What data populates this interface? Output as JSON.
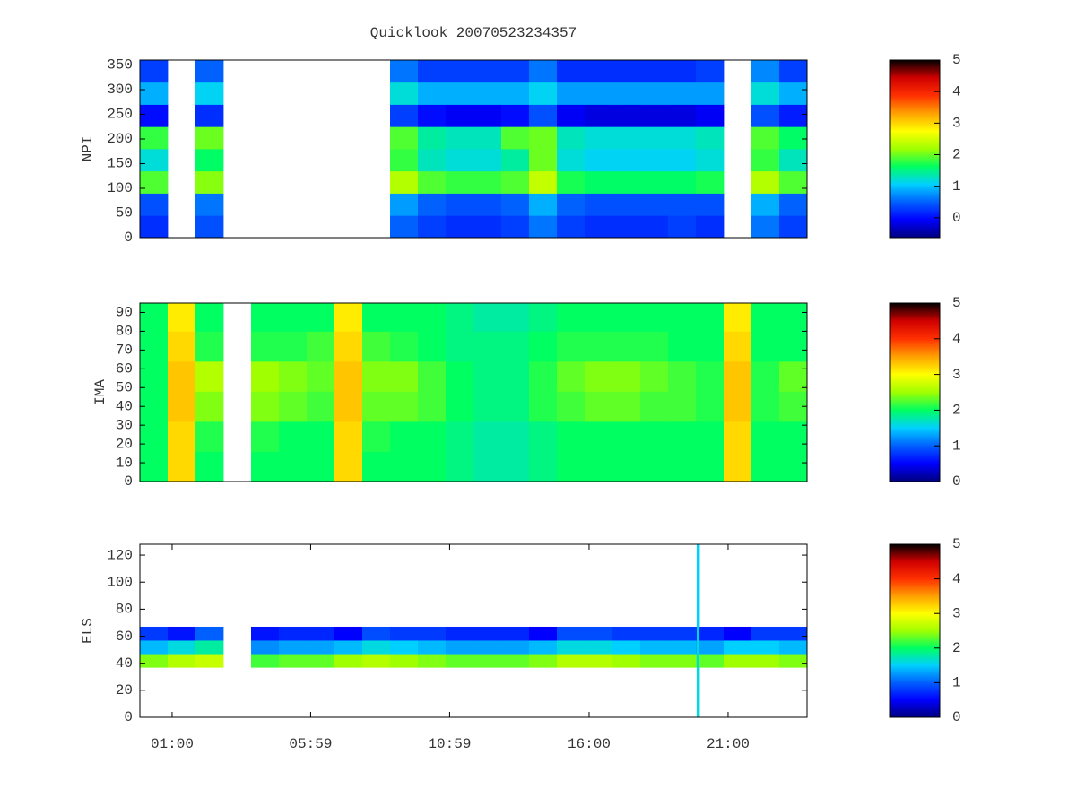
{
  "chart_data": [
    {
      "type": "heatmap",
      "title": "Quicklook 20070523234357",
      "ylabel": "NPI",
      "xlim": [
        -0.16,
        23.84
      ],
      "ylim": [
        0,
        360
      ],
      "yticks": [
        0,
        50,
        100,
        150,
        200,
        250,
        300,
        350
      ],
      "clim": [
        -0.63,
        5
      ],
      "cbticks": [
        0,
        1,
        2,
        3,
        4,
        5
      ],
      "colormap": [
        "#00007f",
        "#0000ff",
        "#0060ff",
        "#00d0ff",
        "#00ff60",
        "#a0ff00",
        "#ffff00",
        "#ffa000",
        "#ff3000",
        "#d00000",
        "#000000"
      ],
      "x_edges": [
        -0.16,
        0.84,
        1.84,
        2.84,
        3.84,
        4.84,
        5.84,
        6.84,
        7.84,
        8.84,
        9.84,
        10.84,
        11.84,
        12.84,
        13.84,
        14.84,
        15.84,
        16.84,
        17.84,
        18.84,
        19.84,
        20.84,
        21.84,
        22.84,
        23.84
      ],
      "y_edges": [
        0,
        45,
        90,
        135,
        180,
        225,
        270,
        315,
        360
      ],
      "values": [
        [
          0.2,
          null,
          0.4,
          null,
          null,
          null,
          null,
          null,
          null,
          0.5,
          0.3,
          0.2,
          0.2,
          0.3,
          0.6,
          0.3,
          0.2,
          0.2,
          0.2,
          0.3,
          0.2,
          null,
          0.6,
          0.3
        ],
        [
          0.4,
          null,
          0.6,
          null,
          null,
          null,
          null,
          null,
          null,
          0.8,
          0.5,
          0.4,
          0.4,
          0.5,
          0.9,
          0.5,
          0.4,
          0.4,
          0.4,
          0.4,
          0.4,
          null,
          0.9,
          0.5
        ],
        [
          1.9,
          null,
          2.1,
          null,
          null,
          null,
          null,
          null,
          null,
          2.3,
          1.9,
          1.8,
          1.8,
          1.9,
          2.4,
          1.7,
          1.6,
          1.6,
          1.6,
          1.6,
          1.7,
          null,
          2.3,
          1.9
        ],
        [
          1.2,
          null,
          1.6,
          null,
          null,
          null,
          null,
          null,
          null,
          1.8,
          1.3,
          1.2,
          1.2,
          1.4,
          2.0,
          1.2,
          1.1,
          1.1,
          1.1,
          1.1,
          1.2,
          null,
          1.8,
          1.3
        ],
        [
          1.8,
          null,
          2.0,
          null,
          null,
          null,
          null,
          null,
          null,
          1.9,
          1.4,
          1.3,
          1.3,
          1.9,
          2.0,
          1.3,
          1.2,
          1.2,
          1.2,
          1.2,
          1.3,
          null,
          1.9,
          1.6
        ],
        [
          0.0,
          null,
          0.2,
          null,
          null,
          null,
          null,
          null,
          null,
          0.3,
          0.0,
          -0.1,
          -0.1,
          0.0,
          0.4,
          -0.1,
          -0.2,
          -0.2,
          -0.2,
          -0.2,
          -0.1,
          null,
          0.4,
          0.1
        ],
        [
          0.9,
          null,
          1.1,
          null,
          null,
          null,
          null,
          null,
          null,
          1.2,
          0.9,
          0.9,
          0.9,
          0.9,
          1.1,
          0.8,
          0.8,
          0.8,
          0.8,
          0.8,
          0.8,
          null,
          1.2,
          0.9
        ],
        [
          0.3,
          null,
          0.5,
          null,
          null,
          null,
          null,
          null,
          null,
          0.6,
          0.3,
          0.3,
          0.3,
          0.3,
          0.6,
          0.2,
          0.2,
          0.2,
          0.2,
          0.2,
          0.3,
          null,
          0.7,
          0.3
        ]
      ]
    },
    {
      "type": "heatmap",
      "ylabel": "IMA",
      "xlim": [
        -0.16,
        23.84
      ],
      "ylim": [
        0,
        95
      ],
      "yticks": [
        0,
        10,
        20,
        30,
        40,
        50,
        60,
        70,
        80,
        90
      ],
      "clim": [
        0,
        5
      ],
      "cbticks": [
        0,
        1,
        2,
        3,
        4,
        5
      ],
      "colormap": [
        "#00007f",
        "#0000ff",
        "#0060ff",
        "#00d0ff",
        "#00ff60",
        "#a0ff00",
        "#ffff00",
        "#ffa000",
        "#ff3000",
        "#d00000",
        "#000000"
      ],
      "x_edges": [
        -0.16,
        0.84,
        1.84,
        2.84,
        3.84,
        4.84,
        5.84,
        6.84,
        7.84,
        8.84,
        9.84,
        10.84,
        11.84,
        12.84,
        13.84,
        14.84,
        15.84,
        16.84,
        17.84,
        18.84,
        19.84,
        20.84,
        21.84,
        22.84,
        23.84
      ],
      "y_edges": [
        0,
        16,
        32,
        48,
        64,
        80,
        95
      ],
      "values": [
        [
          2.0,
          3.2,
          2.0,
          null,
          2.0,
          2.0,
          2.0,
          3.2,
          2.0,
          2.0,
          2.0,
          1.9,
          1.8,
          1.8,
          1.9,
          2.0,
          2.0,
          2.0,
          2.0,
          2.0,
          2.0,
          3.2,
          2.0,
          2.0
        ],
        [
          2.0,
          3.2,
          2.1,
          null,
          2.1,
          2.0,
          2.0,
          3.2,
          2.1,
          2.0,
          2.0,
          1.9,
          1.8,
          1.8,
          1.9,
          2.0,
          2.0,
          2.0,
          2.0,
          2.0,
          2.0,
          3.2,
          2.0,
          2.0
        ],
        [
          2.0,
          3.3,
          2.4,
          null,
          2.4,
          2.3,
          2.2,
          3.3,
          2.3,
          2.3,
          2.2,
          2.0,
          1.9,
          1.9,
          2.1,
          2.2,
          2.3,
          2.3,
          2.2,
          2.2,
          2.1,
          3.3,
          2.1,
          2.2
        ],
        [
          2.0,
          3.3,
          2.6,
          null,
          2.5,
          2.4,
          2.3,
          3.3,
          2.4,
          2.4,
          2.2,
          2.0,
          1.9,
          1.9,
          2.1,
          2.3,
          2.4,
          2.4,
          2.3,
          2.2,
          2.1,
          3.3,
          2.1,
          2.3
        ],
        [
          2.0,
          3.2,
          2.1,
          null,
          2.1,
          2.1,
          2.2,
          3.2,
          2.2,
          2.1,
          2.0,
          1.9,
          1.9,
          1.9,
          2.0,
          2.1,
          2.1,
          2.1,
          2.1,
          2.0,
          2.0,
          3.2,
          2.0,
          2.0
        ],
        [
          2.0,
          3.1,
          2.0,
          null,
          2.0,
          2.0,
          2.0,
          3.1,
          2.0,
          2.0,
          2.0,
          1.9,
          1.8,
          1.8,
          1.9,
          2.0,
          2.0,
          2.0,
          2.0,
          2.0,
          2.0,
          3.1,
          2.0,
          2.0
        ]
      ]
    },
    {
      "type": "heatmap",
      "ylabel": "ELS",
      "xlim": [
        -0.16,
        23.84
      ],
      "ylim": [
        0,
        128
      ],
      "yticks": [
        0,
        20,
        40,
        60,
        80,
        100,
        120
      ],
      "xticks": [
        {
          "value": 1,
          "label": "01:00"
        },
        {
          "value": 5.983,
          "label": "05:59"
        },
        {
          "value": 10.983,
          "label": "10:59"
        },
        {
          "value": 16,
          "label": "16:00"
        },
        {
          "value": 21,
          "label": "21:00"
        }
      ],
      "clim": [
        0,
        5
      ],
      "cbticks": [
        0,
        1,
        2,
        3,
        4,
        5
      ],
      "colormap": [
        "#00007f",
        "#0000ff",
        "#0060ff",
        "#00d0ff",
        "#00ff60",
        "#a0ff00",
        "#ffff00",
        "#ffa000",
        "#ff3000",
        "#d00000",
        "#000000"
      ],
      "x_edges": [
        -0.16,
        0.84,
        1.84,
        2.84,
        3.84,
        4.84,
        5.84,
        6.84,
        7.84,
        8.84,
        9.84,
        10.84,
        11.84,
        12.84,
        13.84,
        14.84,
        15.84,
        16.84,
        17.84,
        18.84,
        19.84,
        19.87,
        19.97,
        20.84,
        21.84,
        22.84,
        23.84
      ],
      "y_edges": [
        0,
        37,
        47,
        57,
        67,
        128
      ],
      "values": [
        [
          null,
          null,
          null,
          null,
          null,
          null,
          null,
          null,
          null,
          null,
          null,
          null,
          null,
          null,
          null,
          null,
          null,
          null,
          null,
          null,
          null,
          1.6,
          null,
          null,
          null,
          null
        ],
        [
          2.4,
          2.6,
          2.7,
          null,
          2.2,
          2.3,
          2.3,
          2.5,
          2.6,
          2.5,
          2.4,
          2.3,
          2.3,
          2.3,
          2.4,
          2.6,
          2.6,
          2.5,
          2.4,
          2.4,
          2.3,
          1.6,
          2.3,
          2.5,
          2.5,
          2.4
        ],
        [
          1.4,
          1.6,
          1.8,
          null,
          1.2,
          1.3,
          1.3,
          1.4,
          1.6,
          1.5,
          1.4,
          1.3,
          1.3,
          1.3,
          1.4,
          1.6,
          1.6,
          1.5,
          1.4,
          1.4,
          1.3,
          1.6,
          1.3,
          1.5,
          1.5,
          1.4
        ],
        [
          0.8,
          0.6,
          1.0,
          null,
          0.6,
          0.7,
          0.7,
          0.5,
          0.9,
          0.8,
          0.8,
          0.7,
          0.7,
          0.7,
          0.5,
          0.9,
          0.9,
          0.8,
          0.8,
          0.8,
          0.7,
          1.6,
          0.7,
          0.5,
          0.8,
          0.8
        ],
        [
          null,
          null,
          null,
          null,
          null,
          null,
          null,
          null,
          null,
          null,
          null,
          null,
          null,
          null,
          null,
          null,
          null,
          null,
          null,
          null,
          null,
          1.5,
          null,
          null,
          null,
          null
        ]
      ]
    }
  ]
}
